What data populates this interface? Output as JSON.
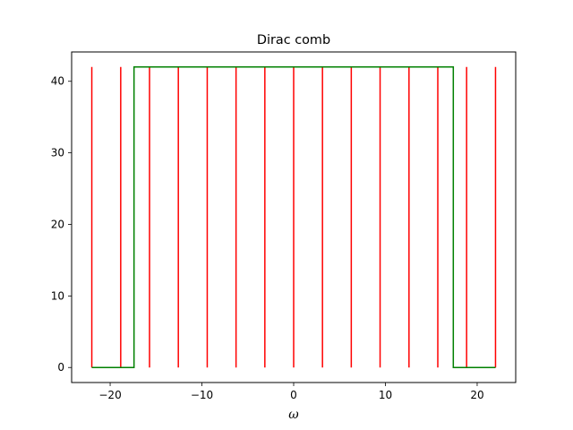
{
  "chart_data": {
    "type": "line",
    "title": "Dirac comb",
    "xlabel": "ω",
    "ylabel": "",
    "xlim": [
      -24.2,
      24.2
    ],
    "ylim": [
      -2.1,
      44.1
    ],
    "xticks": [
      -20,
      -10,
      0,
      10,
      20
    ],
    "yticks": [
      0,
      10,
      20,
      30,
      40
    ],
    "xtick_labels": [
      "−20",
      "−10",
      "0",
      "10",
      "20"
    ],
    "ytick_labels": [
      "0",
      "10",
      "20",
      "30",
      "40"
    ],
    "grid": false,
    "legend": false,
    "colors": {
      "impulses": "#ff0000",
      "step": "#008000",
      "axes": "#000000"
    },
    "series": [
      {
        "kind": "impulses",
        "x": [
          -22.0,
          -18.85,
          -15.71,
          -12.57,
          -9.42,
          -6.28,
          -3.14,
          0.0,
          3.14,
          6.28,
          9.42,
          12.57,
          15.71,
          18.85,
          22.0
        ],
        "height": 42
      },
      {
        "kind": "step",
        "x": [
          -22.0,
          -17.4,
          -17.4,
          17.4,
          17.4,
          22.0
        ],
        "y": [
          0,
          0,
          42,
          42,
          0,
          0
        ]
      }
    ]
  }
}
